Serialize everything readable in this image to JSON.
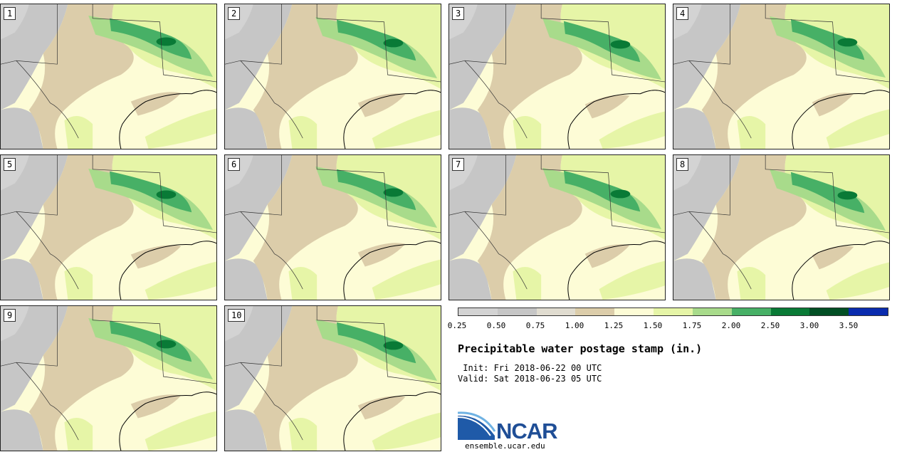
{
  "panels": [
    {
      "label": "1"
    },
    {
      "label": "2"
    },
    {
      "label": "3"
    },
    {
      "label": "4"
    },
    {
      "label": "5"
    },
    {
      "label": "6"
    },
    {
      "label": "7"
    },
    {
      "label": "8"
    },
    {
      "label": "9"
    },
    {
      "label": "10"
    }
  ],
  "colorbar": {
    "colors": [
      "#d3d3d3",
      "#c6c6c6",
      "#e0dcd0",
      "#dccdaa",
      "#fdfcd6",
      "#e6f5a7",
      "#a8db8b",
      "#47b066",
      "#097a36",
      "#024f24",
      "#0a2bae"
    ],
    "ticks": [
      "0.25",
      "0.50",
      "0.75",
      "1.00",
      "1.25",
      "1.50",
      "1.75",
      "2.00",
      "2.50",
      "3.00",
      "3.50"
    ]
  },
  "title": "Precipitable water postage stamp (in.)",
  "init": " Init: Fri 2018-06-22 00 UTC",
  "valid": "Valid: Sat 2018-06-23 05 UTC",
  "logo": {
    "text": "NCAR",
    "url_text": "ensemble.ucar.edu",
    "color": "#1f4e96"
  }
}
